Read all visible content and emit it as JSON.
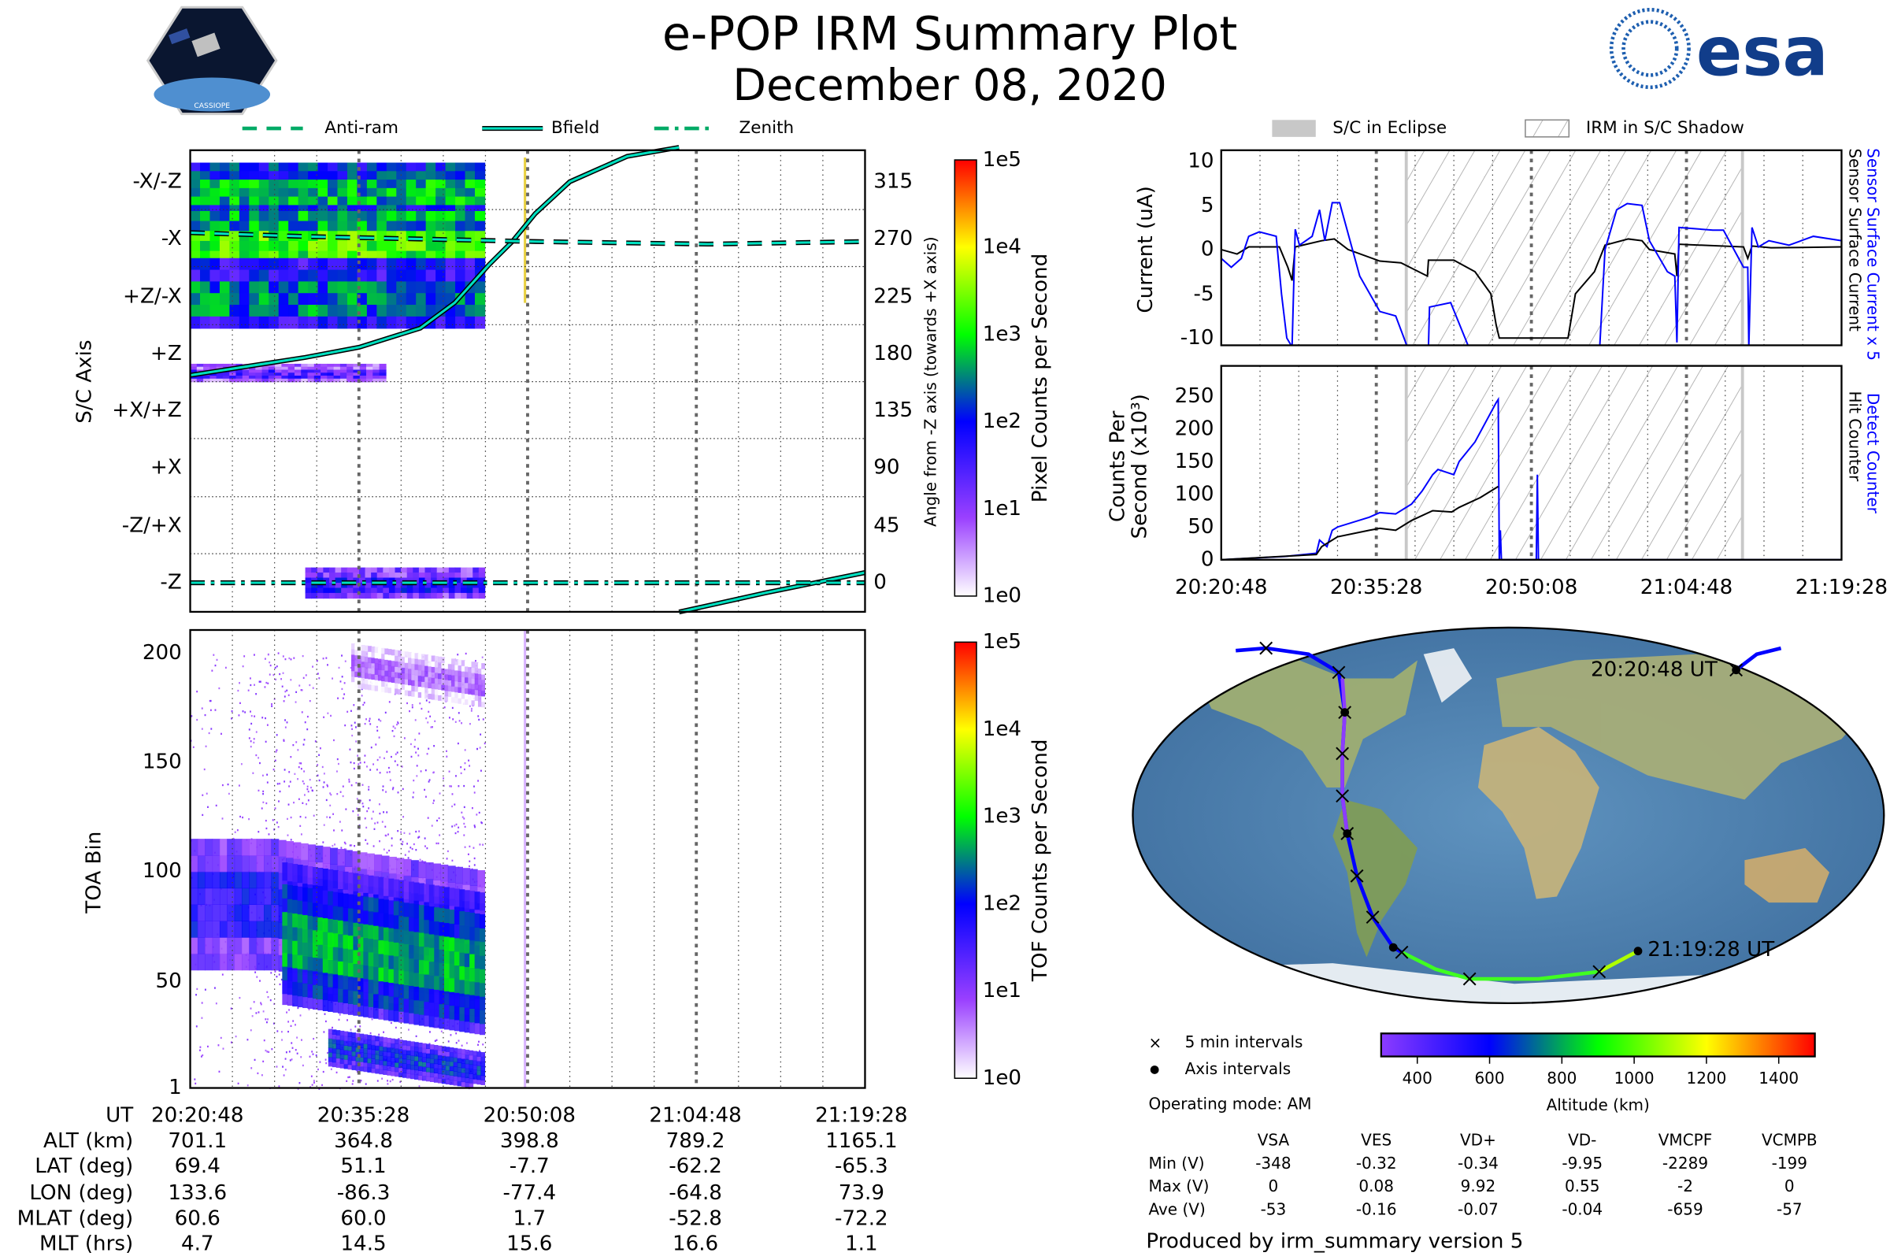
{
  "header": {
    "title": "e-POP IRM Summary Plot",
    "date": "December 08, 2020",
    "cassiope_logo": "CASSIOPE",
    "esa_logo": "esa"
  },
  "colors": {
    "bfield": "#00e0c0",
    "blue": "#0000ff",
    "black": "#000000",
    "hatch": "#b0b0b0",
    "eclipse": "#c8c8c8"
  },
  "chart_data": [
    {
      "type": "heatmap",
      "name": "pixel-spectrogram",
      "legend": [
        "Anti-ram",
        "Bfield",
        "Zenith"
      ],
      "ylabel": "S/C Axis",
      "ytick_labels": [
        "-X/-Z",
        "-X",
        "+Z/-X",
        "+Z",
        "+X/+Z",
        "+X",
        "-Z/+X",
        "-Z"
      ],
      "y2label": "Angle from -Z axis (towards +X axis)",
      "y2ticks": [
        315,
        270,
        225,
        180,
        135,
        90,
        45,
        0
      ],
      "y2lim": [
        -23,
        340
      ],
      "xlim_min": [
        0,
        58.67
      ],
      "colorbar": {
        "label": "Pixel Counts per Second",
        "ticks": [
          "1e5",
          "1e4",
          "1e3",
          "1e2",
          "1e1",
          "1e0"
        ]
      },
      "bands": [
        {
          "t0": 0,
          "t1": 25.6,
          "a0": 290,
          "a1": 330,
          "level": 2.3
        },
        {
          "t0": 0,
          "t1": 25.6,
          "a0": 245,
          "a1": 292,
          "level": 2.8
        },
        {
          "t0": 0,
          "t1": 25.6,
          "a0": 200,
          "a1": 255,
          "level": 2.0
        },
        {
          "t0": 0,
          "t1": 17,
          "a0": 158,
          "a1": 172,
          "level": 1.0
        },
        {
          "t0": 10,
          "t1": 25.6,
          "a0": -12,
          "a1": 12,
          "level": 1.3
        }
      ],
      "bfield": [
        [
          0,
          163
        ],
        [
          5,
          170
        ],
        [
          10,
          177
        ],
        [
          14.7,
          185
        ],
        [
          20,
          200
        ],
        [
          23,
          220
        ],
        [
          26,
          250
        ],
        [
          28,
          268
        ],
        [
          30,
          290
        ],
        [
          33,
          315
        ],
        [
          38,
          335
        ],
        [
          42.5,
          342
        ]
      ],
      "bfield_wrap": [
        [
          42.5,
          -23
        ],
        [
          50,
          -8
        ],
        [
          58.67,
          8
        ]
      ],
      "antiram": [
        [
          0,
          275
        ],
        [
          10,
          272
        ],
        [
          20,
          270
        ],
        [
          30,
          268
        ],
        [
          45,
          266
        ],
        [
          58.67,
          268
        ]
      ],
      "zenith": [
        [
          0,
          0
        ],
        [
          20,
          0
        ],
        [
          40,
          0
        ],
        [
          58.67,
          0
        ]
      ]
    },
    {
      "type": "heatmap",
      "name": "toa-spectrogram",
      "ylabel": "TOA Bin",
      "yticks": [
        200,
        150,
        100,
        50,
        1
      ],
      "ylim": [
        1,
        210
      ],
      "colorbar": {
        "label": "TOF Counts per Second",
        "ticks": [
          "1e5",
          "1e4",
          "1e3",
          "1e2",
          "1e1",
          "1e0"
        ]
      },
      "bands": [
        {
          "t0": 0,
          "t1": 25.6,
          "b0": 55,
          "b1": 115,
          "level": 1.6
        },
        {
          "t0": 8,
          "t1": 25.6,
          "b0": 40,
          "b1": 105,
          "level": 2.0
        },
        {
          "t0": 8,
          "t1": 25.6,
          "b0": 45,
          "b1": 95,
          "level": 2.5
        },
        {
          "t0": 12,
          "t1": 25.6,
          "b0": 15,
          "b1": 32,
          "level": 1.9
        },
        {
          "t0": 14,
          "t1": 25.6,
          "b0": 190,
          "b1": 210,
          "level": 0.6
        }
      ]
    },
    {
      "type": "line",
      "name": "sensor-current",
      "ylabel": "Current (uA)",
      "yticks": [
        10,
        5,
        0,
        -5,
        -10
      ],
      "ylim": [
        -10.8,
        11.2
      ],
      "right_labels": [
        "Sensor Surface Current x 5",
        "Sensor Surface Current"
      ],
      "legend": [
        "S/C in Eclipse",
        "IRM in S/C Shadow"
      ],
      "shadow_min": [
        17.5,
        49.3
      ],
      "series": [
        {
          "name": "Sensor Surface Current x 5",
          "color": "#0000ff",
          "points": [
            [
              0,
              -1
            ],
            [
              0.95,
              -2
            ],
            [
              1.9,
              -1
            ],
            [
              2.6,
              1.5
            ],
            [
              3.6,
              2
            ],
            [
              5.2,
              1.5
            ],
            [
              5.7,
              -5
            ],
            [
              6.2,
              -10
            ],
            [
              6.7,
              -11
            ],
            [
              7.0,
              2.3
            ],
            [
              7.4,
              0.5
            ],
            [
              8.6,
              1.5
            ],
            [
              9.3,
              4.5
            ],
            [
              9.8,
              1
            ],
            [
              10.5,
              5.3
            ],
            [
              11.2,
              5.3
            ],
            [
              13.1,
              -3
            ],
            [
              15.0,
              -7
            ],
            [
              16.5,
              -7.5
            ],
            [
              17.6,
              -11
            ],
            null,
            [
              19.6,
              -11
            ],
            [
              19.7,
              -6.5
            ],
            [
              21.7,
              -6
            ],
            [
              23.4,
              -11
            ],
            null,
            [
              35.8,
              -11
            ],
            [
              36.3,
              0
            ],
            [
              37.4,
              4.5
            ],
            [
              38.4,
              5.2
            ],
            [
              39.8,
              5
            ],
            [
              40.5,
              1
            ],
            [
              42.2,
              -2.5
            ],
            [
              42.9,
              -3
            ],
            [
              43.1,
              -10.5
            ],
            [
              43.3,
              2.5
            ],
            [
              46.5,
              2.2
            ],
            [
              47.5,
              2.2
            ],
            [
              49.4,
              -2
            ],
            [
              49.8,
              -2
            ],
            [
              49.9,
              -11
            ],
            [
              50.2,
              2.5
            ],
            [
              50.8,
              0.3
            ],
            [
              51.8,
              1
            ],
            [
              53.7,
              0.5
            ],
            [
              56,
              1.5
            ],
            [
              58.67,
              1
            ]
          ]
        },
        {
          "name": "Sensor Surface Current",
          "color": "#000000",
          "points": [
            [
              0,
              0
            ],
            [
              0.9,
              -0.3
            ],
            [
              1.5,
              -0.5
            ],
            [
              2.6,
              0.3
            ],
            [
              5.5,
              0.3
            ],
            [
              6.3,
              -2
            ],
            [
              6.7,
              -3.5
            ],
            [
              7.0,
              0.3
            ],
            [
              9.5,
              1
            ],
            [
              10.7,
              1.2
            ],
            [
              12,
              0
            ],
            [
              15,
              -1.3
            ],
            [
              17,
              -1.5
            ],
            [
              19.5,
              -3
            ],
            [
              19.6,
              -1.2
            ],
            [
              22,
              -1.2
            ],
            [
              24,
              -2.5
            ],
            [
              25.5,
              -5
            ],
            [
              26,
              -8.5
            ],
            [
              26.3,
              -10
            ],
            [
              32.8,
              -10
            ],
            [
              33.5,
              -5
            ],
            [
              35.3,
              -2.5
            ],
            [
              36.3,
              0.5
            ],
            [
              38.5,
              1.2
            ],
            [
              39.8,
              1
            ],
            [
              40.5,
              0
            ],
            [
              42.9,
              -0.5
            ],
            [
              43.1,
              -3
            ],
            [
              43.3,
              0.6
            ],
            [
              49.4,
              0.3
            ],
            [
              49.8,
              -1
            ],
            [
              50.2,
              0.4
            ],
            [
              52,
              0.2
            ],
            [
              58.67,
              0.3
            ]
          ]
        }
      ]
    },
    {
      "type": "line",
      "name": "counters",
      "ylabel": "Counts Per Second (x10³)",
      "ylabel_line1": "Counts Per",
      "ylabel_line2": "Second (x10³)",
      "yticks": [
        250,
        200,
        150,
        100,
        50,
        0
      ],
      "ylim": [
        0,
        296
      ],
      "right_labels": [
        "Detect Counter",
        "Hit Counter"
      ],
      "xtick_labels": [
        "20:20:48",
        "20:35:28",
        "20:50:08",
        "21:04:48",
        "21:19:28"
      ],
      "series": [
        {
          "name": "Detect Counter",
          "color": "#0000ff",
          "points": [
            [
              0,
              0
            ],
            [
              6,
              5
            ],
            [
              9,
              10
            ],
            [
              9.3,
              30
            ],
            [
              10,
              20
            ],
            [
              10.5,
              45
            ],
            [
              11,
              50
            ],
            [
              14,
              65
            ],
            [
              15,
              72
            ],
            [
              16.5,
              70
            ],
            [
              18,
              85
            ],
            [
              19,
              105
            ],
            [
              20,
              130
            ],
            [
              20.5,
              138
            ],
            [
              22,
              130
            ],
            [
              22.5,
              150
            ],
            [
              24,
              180
            ],
            [
              25,
              210
            ],
            [
              26,
              240
            ],
            [
              26.2,
              245
            ],
            [
              26.3,
              0
            ],
            [
              26.4,
              45
            ],
            [
              26.5,
              0
            ],
            [
              29.8,
              0
            ],
            [
              29.9,
              130
            ],
            [
              30,
              0
            ],
            [
              58.67,
              0
            ]
          ]
        },
        {
          "name": "Hit Counter",
          "color": "#000000",
          "points": [
            [
              0,
              0
            ],
            [
              9,
              8
            ],
            [
              9.5,
              20
            ],
            [
              10,
              25
            ],
            [
              11,
              35
            ],
            [
              14,
              45
            ],
            [
              15,
              48
            ],
            [
              16.5,
              45
            ],
            [
              18,
              60
            ],
            [
              20,
              75
            ],
            [
              21.8,
              73
            ],
            [
              22.5,
              80
            ],
            [
              24.5,
              95
            ],
            [
              26.2,
              112
            ]
          ]
        }
      ]
    }
  ],
  "map": {
    "start_label": "20:20:48 UT",
    "end_label": "21:19:28 UT",
    "legend": {
      "five_min": "5 min intervals",
      "axis": "Axis intervals"
    },
    "altitude_colorbar": {
      "label": "Altitude (km)",
      "ticks": [
        400,
        600,
        800,
        1000,
        1200,
        1400
      ],
      "range": [
        300,
        1500
      ]
    },
    "operating_mode": "Operating mode: AM"
  },
  "ephemeris": {
    "row_labels": [
      "UT",
      "ALT (km)",
      "LAT (deg)",
      "LON (deg)",
      "MLAT (deg)",
      "MLT (hrs)"
    ],
    "columns": [
      [
        "20:20:48",
        "701.1",
        "69.4",
        "133.6",
        "60.6",
        "4.7"
      ],
      [
        "20:35:28",
        "364.8",
        "51.1",
        "-86.3",
        "60.0",
        "14.5"
      ],
      [
        "20:50:08",
        "398.8",
        "-7.7",
        "-77.4",
        "1.7",
        "15.6"
      ],
      [
        "21:04:48",
        "789.2",
        "-62.2",
        "-64.8",
        "-52.8",
        "16.6"
      ],
      [
        "21:19:28",
        "1165.1",
        "-65.3",
        "73.9",
        "-72.2",
        "1.1"
      ]
    ]
  },
  "voltages": {
    "headers": [
      "VSA",
      "VES",
      "VD+",
      "VD-",
      "VMCPF",
      "VCMPB"
    ],
    "rows": [
      {
        "label": "Min (V)",
        "values": [
          "-348",
          "-0.32",
          "-0.34",
          "-9.95",
          "-2289",
          "-199"
        ]
      },
      {
        "label": "Max (V)",
        "values": [
          "0",
          "0.08",
          "9.92",
          "0.55",
          "-2",
          "0"
        ]
      },
      {
        "label": "Ave (V)",
        "values": [
          "-53",
          "-0.16",
          "-0.07",
          "-0.04",
          "-659",
          "-57"
        ]
      }
    ]
  },
  "footer": "Produced by irm_summary version 5"
}
